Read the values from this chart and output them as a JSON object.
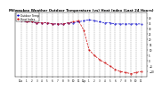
{
  "title": "Milwaukee Weather Outdoor Temperature (vs) Heat Index (Last 24 Hours)",
  "title_fontsize": 2.8,
  "background_color": "#ffffff",
  "x_values": [
    0,
    1,
    2,
    3,
    4,
    5,
    6,
    7,
    8,
    9,
    10,
    11,
    12,
    13,
    14,
    15,
    16,
    17,
    18,
    19,
    20,
    21,
    22,
    23
  ],
  "temp_values": [
    37,
    36,
    36,
    35,
    35,
    35,
    34,
    34,
    34,
    35,
    35,
    36,
    37,
    38,
    37,
    36,
    35,
    35,
    34,
    34,
    34,
    34,
    34,
    34
  ],
  "heat_index_values": [
    37,
    36,
    36,
    35,
    35,
    35,
    34,
    34,
    34,
    35,
    36,
    37,
    28,
    10,
    5,
    1,
    -2,
    -5,
    -8,
    -10,
    -11,
    -12,
    -11,
    -10
  ],
  "temp_color": "#0000cc",
  "heat_index_color": "#cc0000",
  "grid_color": "#888888",
  "ylim": [
    -15,
    45
  ],
  "ytick_values": [
    40,
    35,
    30,
    25,
    20,
    15,
    10,
    5,
    0,
    -5,
    -10
  ],
  "tick_fontsize": 2.0,
  "legend_labels": [
    "Outdoor Temp",
    "Heat Index"
  ],
  "legend_fontsize": 2.2,
  "line_width": 0.5,
  "marker_size": 0.8,
  "x_labels": [
    "12a",
    "1",
    "2",
    "3",
    "4",
    "5",
    "6",
    "7",
    "8",
    "9",
    "10",
    "11",
    "12p",
    "1",
    "2",
    "3",
    "4",
    "5",
    "6",
    "7",
    "8",
    "9",
    "10",
    "11"
  ]
}
